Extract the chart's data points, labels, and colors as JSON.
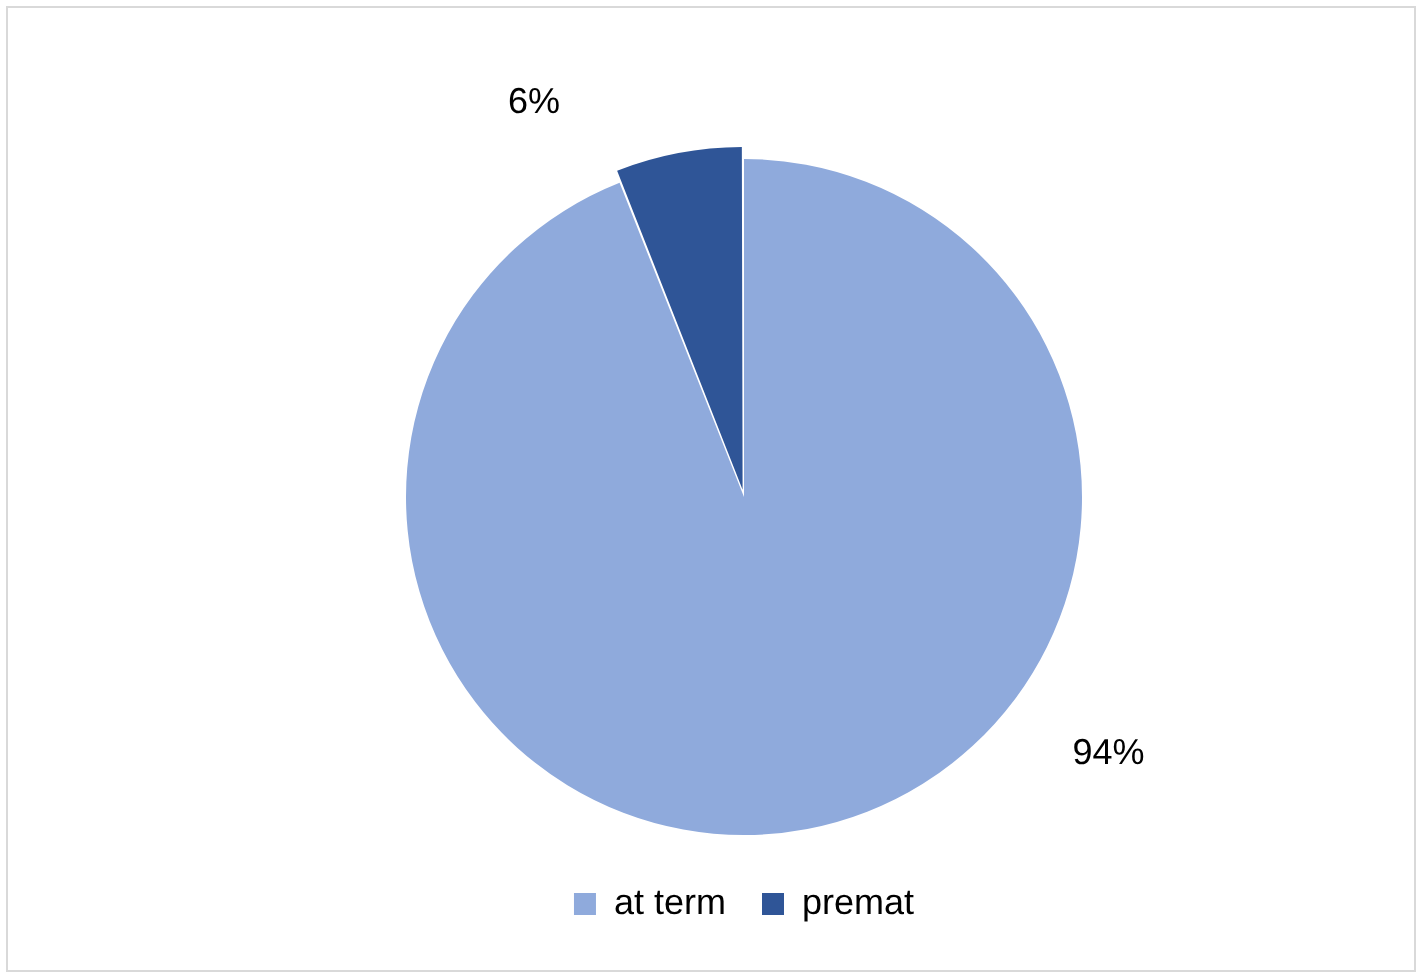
{
  "chart_data": {
    "type": "pie",
    "categories": [
      "at term",
      "premat"
    ],
    "values": [
      94,
      6
    ],
    "colors": [
      "#8faadc",
      "#2f5597"
    ],
    "value_labels": [
      "94%",
      "6%"
    ],
    "legend": "bottom"
  }
}
